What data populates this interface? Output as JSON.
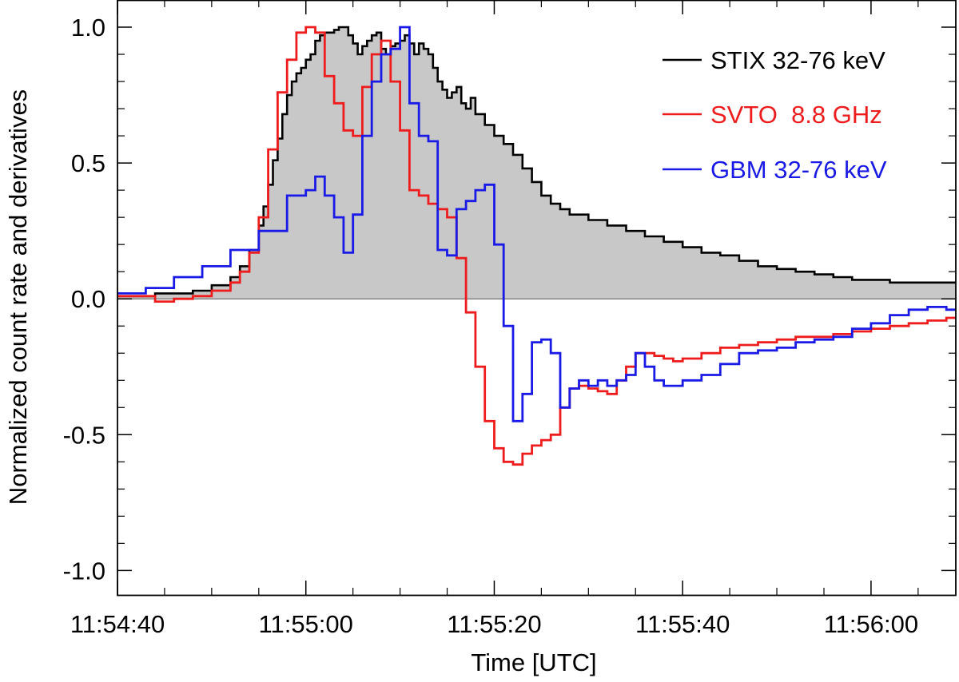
{
  "chart_data": {
    "type": "line",
    "xlabel": "Time [UTC]",
    "ylabel": "Normalized count rate and derivatives",
    "x_unit": "time of day (hh:mm:ss)",
    "xlim": [
      "11:54:40",
      "11:56:09"
    ],
    "ylim": [
      -1.09,
      1.1
    ],
    "x_ticks": [
      "11:54:40",
      "11:55:00",
      "11:55:20",
      "11:55:40",
      "11:56:00"
    ],
    "y_ticks": [
      "1.0",
      "0.5",
      "0.0",
      "-0.5",
      "-1.0"
    ],
    "legend_position": "top-right",
    "grid": false,
    "series": [
      {
        "name": "STIX 32-76 keV",
        "color": "#000000",
        "fill": "#c8c8c8",
        "style": "histogram",
        "x": [
          "11:54:40",
          "11:54:44",
          "11:54:48",
          "11:54:50",
          "11:54:52",
          "11:54:53",
          "11:54:54",
          "11:54:55",
          "11:54:55.5",
          "11:54:56",
          "11:54:56.5",
          "11:54:57",
          "11:54:57.5",
          "11:54:58",
          "11:54:58.5",
          "11:54:59",
          "11:54:59.5",
          "11:55:00",
          "11:55:00.5",
          "11:55:01",
          "11:55:01.5",
          "11:55:02",
          "11:55:02.5",
          "11:55:03",
          "11:55:03.5",
          "11:55:04",
          "11:55:04.5",
          "11:55:05",
          "11:55:05.5",
          "11:55:06",
          "11:55:06.5",
          "11:55:07",
          "11:55:07.5",
          "11:55:08",
          "11:55:08.5",
          "11:55:09",
          "11:55:09.5",
          "11:55:10",
          "11:55:10.5",
          "11:55:11",
          "11:55:11.5",
          "11:55:12",
          "11:55:12.5",
          "11:55:13",
          "11:55:13.5",
          "11:55:14",
          "11:55:14.5",
          "11:55:15",
          "11:55:15.5",
          "11:55:16",
          "11:55:16.5",
          "11:55:17",
          "11:55:17.5",
          "11:55:18",
          "11:55:19",
          "11:55:20",
          "11:55:21",
          "11:55:22",
          "11:55:23",
          "11:55:24",
          "11:55:25",
          "11:55:26",
          "11:55:27",
          "11:55:28",
          "11:55:30",
          "11:55:32",
          "11:55:34",
          "11:55:36",
          "11:55:38",
          "11:55:40",
          "11:55:42",
          "11:55:44",
          "11:55:46",
          "11:55:48",
          "11:55:50",
          "11:55:52",
          "11:55:54",
          "11:55:56",
          "11:55:58",
          "11:56:00",
          "11:56:02",
          "11:56:04",
          "11:56:06",
          "11:56:08"
        ],
        "values": [
          0.01,
          0.02,
          0.03,
          0.05,
          0.08,
          0.12,
          0.18,
          0.27,
          0.34,
          0.42,
          0.51,
          0.59,
          0.68,
          0.75,
          0.8,
          0.83,
          0.85,
          0.88,
          0.9,
          0.95,
          0.97,
          0.98,
          0.98,
          0.99,
          1.0,
          1.0,
          0.97,
          0.94,
          0.9,
          0.93,
          0.95,
          0.97,
          0.98,
          0.92,
          0.9,
          0.93,
          0.94,
          0.95,
          0.97,
          0.94,
          0.9,
          0.94,
          0.92,
          0.9,
          0.85,
          0.8,
          0.77,
          0.74,
          0.76,
          0.78,
          0.72,
          0.7,
          0.74,
          0.68,
          0.64,
          0.6,
          0.57,
          0.53,
          0.48,
          0.43,
          0.38,
          0.35,
          0.33,
          0.31,
          0.29,
          0.27,
          0.25,
          0.23,
          0.21,
          0.19,
          0.17,
          0.16,
          0.14,
          0.12,
          0.11,
          0.1,
          0.09,
          0.08,
          0.07,
          0.07,
          0.06,
          0.06,
          0.06,
          0.06
        ]
      },
      {
        "name": "SVTO  8.8 GHz",
        "color": "#ee1c1c",
        "style": "step",
        "x": [
          "11:54:40",
          "11:54:44",
          "11:54:46",
          "11:54:48",
          "11:54:50",
          "11:54:52",
          "11:54:53",
          "11:54:54",
          "11:54:55",
          "11:54:56",
          "11:54:57",
          "11:54:58",
          "11:54:59",
          "11:55:00",
          "11:55:01",
          "11:55:02",
          "11:55:03",
          "11:55:04",
          "11:55:05",
          "11:55:06",
          "11:55:07",
          "11:55:08",
          "11:55:09",
          "11:55:10",
          "11:55:11",
          "11:55:12",
          "11:55:13",
          "11:55:14",
          "11:55:15",
          "11:55:16",
          "11:55:17",
          "11:55:18",
          "11:55:19",
          "11:55:20",
          "11:55:21",
          "11:55:22",
          "11:55:23",
          "11:55:24",
          "11:55:25",
          "11:55:26",
          "11:55:27",
          "11:55:28",
          "11:55:29",
          "11:55:30",
          "11:55:31",
          "11:55:32",
          "11:55:33",
          "11:55:34",
          "11:55:35",
          "11:55:36",
          "11:55:37",
          "11:55:38",
          "11:55:39",
          "11:55:40",
          "11:55:42",
          "11:55:44",
          "11:55:46",
          "11:55:48",
          "11:55:50",
          "11:55:52",
          "11:55:54",
          "11:55:56",
          "11:55:58",
          "11:56:00",
          "11:56:02",
          "11:56:04",
          "11:56:06",
          "11:56:08"
        ],
        "values": [
          0.01,
          -0.01,
          0.0,
          0.01,
          0.03,
          0.06,
          0.1,
          0.17,
          0.3,
          0.55,
          0.76,
          0.88,
          0.98,
          1.0,
          0.98,
          0.82,
          0.72,
          0.62,
          0.6,
          0.78,
          0.9,
          0.95,
          0.8,
          0.62,
          0.4,
          0.38,
          0.35,
          0.33,
          0.3,
          0.15,
          -0.05,
          -0.25,
          -0.45,
          -0.55,
          -0.6,
          -0.61,
          -0.57,
          -0.54,
          -0.52,
          -0.5,
          -0.4,
          -0.33,
          -0.32,
          -0.33,
          -0.34,
          -0.35,
          -0.3,
          -0.25,
          -0.2,
          -0.2,
          -0.21,
          -0.22,
          -0.23,
          -0.22,
          -0.2,
          -0.18,
          -0.17,
          -0.16,
          -0.15,
          -0.14,
          -0.14,
          -0.13,
          -0.12,
          -0.11,
          -0.1,
          -0.09,
          -0.08,
          -0.07
        ]
      },
      {
        "name": "GBM 32-76 keV",
        "color": "#1a1ae6",
        "style": "step",
        "x": [
          "11:54:40",
          "11:54:43",
          "11:54:46",
          "11:54:49",
          "11:54:52",
          "11:54:55",
          "11:54:58",
          "11:55:00",
          "11:55:01",
          "11:55:02",
          "11:55:03",
          "11:55:04",
          "11:55:05",
          "11:55:06",
          "11:55:07",
          "11:55:08",
          "11:55:09",
          "11:55:10",
          "11:55:11",
          "11:55:12",
          "11:55:13",
          "11:55:14",
          "11:55:15",
          "11:55:16",
          "11:55:17",
          "11:55:18",
          "11:55:19",
          "11:55:20",
          "11:55:21",
          "11:55:22",
          "11:55:23",
          "11:55:24",
          "11:55:25",
          "11:55:26",
          "11:55:27",
          "11:55:28",
          "11:55:29",
          "11:55:30",
          "11:55:31",
          "11:55:32",
          "11:55:33",
          "11:55:34",
          "11:55:35",
          "11:55:36",
          "11:55:37",
          "11:55:38",
          "11:55:40",
          "11:55:42",
          "11:55:44",
          "11:55:46",
          "11:55:48",
          "11:55:50",
          "11:55:52",
          "11:55:54",
          "11:55:56",
          "11:55:58",
          "11:56:00",
          "11:56:02",
          "11:56:04",
          "11:56:06",
          "11:56:08"
        ],
        "values": [
          0.02,
          0.04,
          0.08,
          0.12,
          0.18,
          0.25,
          0.38,
          0.4,
          0.45,
          0.38,
          0.3,
          0.17,
          0.31,
          0.6,
          0.8,
          0.9,
          0.92,
          1.0,
          0.72,
          0.6,
          0.58,
          0.18,
          0.16,
          0.33,
          0.36,
          0.4,
          0.42,
          0.2,
          -0.1,
          -0.45,
          -0.35,
          -0.16,
          -0.15,
          -0.2,
          -0.4,
          -0.33,
          -0.3,
          -0.32,
          -0.3,
          -0.32,
          -0.3,
          -0.28,
          -0.2,
          -0.25,
          -0.3,
          -0.32,
          -0.3,
          -0.28,
          -0.24,
          -0.2,
          -0.19,
          -0.18,
          -0.16,
          -0.15,
          -0.14,
          -0.11,
          -0.09,
          -0.06,
          -0.04,
          -0.03,
          -0.04
        ]
      }
    ]
  }
}
